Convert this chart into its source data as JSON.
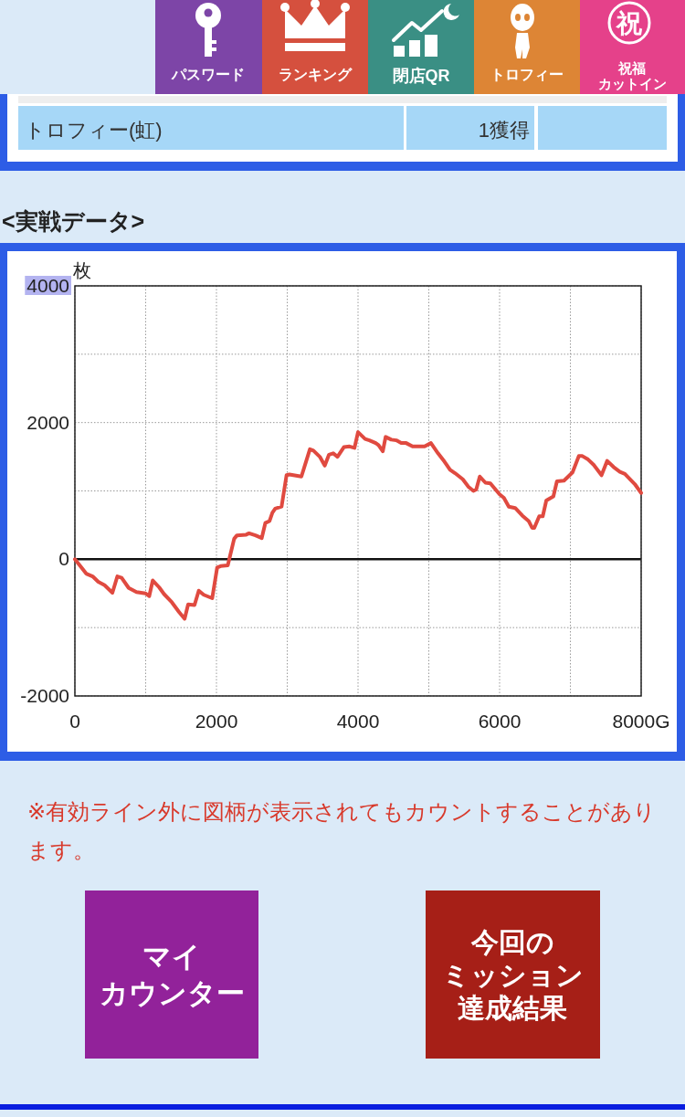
{
  "chart_data": {
    "type": "line",
    "title": "<実戦データ>",
    "ylabel": "枚",
    "x": [
      0,
      160,
      250,
      330,
      420,
      530,
      600,
      660,
      760,
      870,
      1000,
      1050,
      1100,
      1190,
      1260,
      1370,
      1470,
      1550,
      1600,
      1690,
      1750,
      1820,
      1940,
      2010,
      2060,
      2160,
      2250,
      2290,
      2420,
      2460,
      2550,
      2640,
      2690,
      2750,
      2790,
      2830,
      2920,
      2990,
      3030,
      3200,
      3320,
      3370,
      3460,
      3530,
      3590,
      3650,
      3710,
      3800,
      3880,
      3950,
      4000,
      4100,
      4160,
      4250,
      4290,
      4350,
      4390,
      4470,
      4540,
      4610,
      4680,
      4770,
      4940,
      5030,
      5130,
      5220,
      5300,
      5370,
      5480,
      5560,
      5630,
      5670,
      5720,
      5800,
      5870,
      6000,
      6060,
      6130,
      6220,
      6320,
      6410,
      6460,
      6490,
      6560,
      6610,
      6660,
      6760,
      6810,
      6910,
      7030,
      7120,
      7170,
      7250,
      7330,
      7440,
      7520,
      7610,
      7700,
      7770,
      7910,
      8000
    ],
    "values": [
      0,
      -210,
      -250,
      -330,
      -380,
      -490,
      -250,
      -270,
      -420,
      -480,
      -500,
      -540,
      -310,
      -410,
      -510,
      -630,
      -770,
      -870,
      -660,
      -670,
      -460,
      -520,
      -570,
      -120,
      -100,
      -90,
      300,
      350,
      360,
      380,
      350,
      310,
      530,
      560,
      680,
      740,
      770,
      1230,
      1240,
      1210,
      1610,
      1590,
      1500,
      1370,
      1530,
      1550,
      1500,
      1640,
      1650,
      1630,
      1860,
      1760,
      1740,
      1700,
      1670,
      1580,
      1790,
      1750,
      1740,
      1700,
      1700,
      1650,
      1650,
      1700,
      1550,
      1430,
      1310,
      1260,
      1170,
      1060,
      1000,
      1020,
      1210,
      1120,
      1110,
      950,
      900,
      770,
      750,
      640,
      560,
      460,
      460,
      630,
      630,
      860,
      920,
      1140,
      1150,
      1270,
      1510,
      1510,
      1460,
      1380,
      1230,
      1440,
      1350,
      1280,
      1250,
      1100,
      970
    ],
    "color": "#e04a40",
    "line_style": "solid",
    "xlim": [
      0,
      8000
    ],
    "ylim": [
      -2000,
      4000
    ],
    "xticks": [
      0,
      {
        "value": 1000,
        "label": null
      },
      2000,
      {
        "value": 3000,
        "label": null
      },
      4000,
      {
        "value": 5000,
        "label": null
      },
      6000,
      {
        "value": 7000,
        "label": null
      },
      {
        "value": 8000,
        "label": "8000G"
      }
    ],
    "yticks": [
      -2000,
      {
        "value": -1000,
        "label": null
      },
      0,
      {
        "value": 1000,
        "label": null
      },
      2000,
      {
        "value": 3000,
        "label": null
      },
      4000
    ],
    "grid": true,
    "ref_lines": [
      {
        "axis": "y",
        "value": 0,
        "color": "#111111"
      }
    ],
    "annotations": [
      "パスワード",
      "ランキング",
      "閉店QR",
      "トロフィー",
      "祝",
      "祝福",
      "カットイン",
      "トロフィー(虹)",
      "1獲得",
      "※有効ライン外に図柄が表示されてもカウントすることがあります。",
      "マイ",
      "カウンター",
      "今回の",
      "ミッション",
      "達成結果"
    ]
  }
}
